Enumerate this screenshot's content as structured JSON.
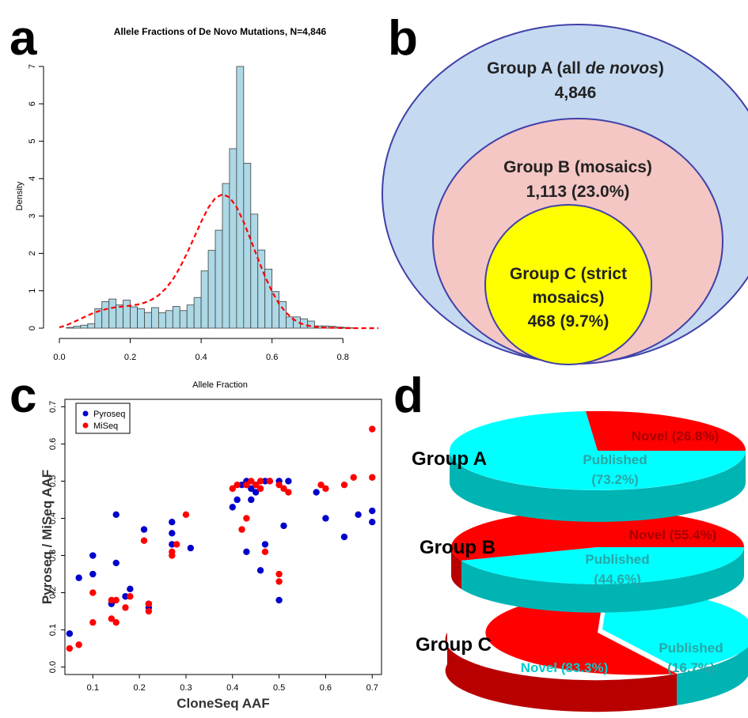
{
  "panels": {
    "a": "a",
    "b": "b",
    "c": "c",
    "d": "d"
  },
  "chart_data": [
    {
      "panel": "a",
      "type": "bar",
      "subtype": "histogram",
      "title": "Allele Fractions of De Novo Mutations, N=4,846",
      "xlabel": "Allele Fraction",
      "ylabel": "Density",
      "xlim": [
        0.0,
        0.9
      ],
      "ylim": [
        0,
        7
      ],
      "xticks": [
        "0.0",
        "0.2",
        "0.4",
        "0.6",
        "0.8"
      ],
      "yticks": [
        "0",
        "1",
        "2",
        "3",
        "4",
        "5",
        "6",
        "7"
      ],
      "bin_width": 0.02,
      "bin_start": 0.02,
      "bins": [
        0.02,
        0.04,
        0.06,
        0.08,
        0.1,
        0.12,
        0.14,
        0.16,
        0.18,
        0.2,
        0.22,
        0.24,
        0.26,
        0.28,
        0.3,
        0.32,
        0.34,
        0.36,
        0.38,
        0.4,
        0.42,
        0.44,
        0.46,
        0.48,
        0.5,
        0.52,
        0.54,
        0.56,
        0.58,
        0.6,
        0.62,
        0.64,
        0.66,
        0.68,
        0.7,
        0.72,
        0.74,
        0.76,
        0.78,
        0.8,
        0.82
      ],
      "values": [
        0.02,
        0.05,
        0.08,
        0.12,
        0.52,
        0.71,
        0.78,
        0.62,
        0.75,
        0.57,
        0.52,
        0.42,
        0.55,
        0.41,
        0.47,
        0.58,
        0.47,
        0.62,
        0.82,
        1.53,
        2.08,
        2.62,
        3.87,
        4.8,
        7.0,
        4.41,
        3.05,
        2.09,
        1.58,
        0.98,
        0.71,
        0.3,
        0.3,
        0.25,
        0.19,
        0.06,
        0.06,
        0.05,
        0.03,
        0.02,
        0.01
      ],
      "fit_curve": {
        "style": "dashed",
        "color": "#ff0000",
        "x": [
          0.0,
          0.02,
          0.04,
          0.06,
          0.08,
          0.1,
          0.12,
          0.14,
          0.16,
          0.18,
          0.2,
          0.22,
          0.24,
          0.26,
          0.28,
          0.3,
          0.32,
          0.34,
          0.36,
          0.38,
          0.4,
          0.42,
          0.44,
          0.46,
          0.48,
          0.5,
          0.52,
          0.54,
          0.56,
          0.58,
          0.6,
          0.62,
          0.64,
          0.66,
          0.68,
          0.7,
          0.72,
          0.74,
          0.76,
          0.78,
          0.8,
          0.82,
          0.84,
          0.86,
          0.88,
          0.9
        ],
        "y": [
          0.02,
          0.08,
          0.16,
          0.25,
          0.34,
          0.42,
          0.48,
          0.53,
          0.56,
          0.58,
          0.6,
          0.63,
          0.68,
          0.76,
          0.88,
          1.06,
          1.3,
          1.62,
          2.0,
          2.42,
          2.84,
          3.22,
          3.48,
          3.58,
          3.5,
          3.24,
          2.84,
          2.36,
          1.86,
          1.39,
          0.98,
          0.65,
          0.41,
          0.24,
          0.13,
          0.07,
          0.04,
          0.02,
          0.01,
          0.01,
          0.0,
          0.0,
          0.0,
          0.0,
          0.0,
          0.0
        ]
      },
      "bar_fill": "#add8e6",
      "bar_stroke": "#404040"
    },
    {
      "panel": "b",
      "type": "diagram",
      "subtype": "nested-circles",
      "groups": [
        {
          "label_pre": "Group A (all ",
          "label_em": "de novos",
          "label_post": ")",
          "value": "4,846",
          "fill": "#c5d9f1",
          "stroke": "#4a4ab0"
        },
        {
          "label": "Group B (mosaics)",
          "value": "1,113 (23.0%)",
          "fill": "#f4c6c4",
          "stroke": "#4a4ab0"
        },
        {
          "label_line1": "Group C (strict",
          "label_line2": "mosaics)",
          "value": "468 (9.7%)",
          "fill": "#ffff00",
          "stroke": "#4a4ab0"
        }
      ]
    },
    {
      "panel": "c",
      "type": "scatter",
      "xlabel": "CloneSeq AAF",
      "ylabel": "Pyroseq / MiSeq AAF",
      "xlim": [
        0.04,
        0.72
      ],
      "ylim": [
        -0.02,
        0.72
      ],
      "xticks": [
        "0.1",
        "0.2",
        "0.3",
        "0.4",
        "0.5",
        "0.6",
        "0.7"
      ],
      "yticks": [
        "0.0",
        "0.1",
        "0.2",
        "0.3",
        "0.4",
        "0.5",
        "0.6",
        "0.7"
      ],
      "legend_position": "top-left",
      "series": [
        {
          "name": "Pyroseq",
          "color": "#0000cc",
          "points": [
            [
              0.05,
              0.09
            ],
            [
              0.07,
              0.24
            ],
            [
              0.1,
              0.3
            ],
            [
              0.1,
              0.25
            ],
            [
              0.14,
              0.17
            ],
            [
              0.15,
              0.41
            ],
            [
              0.15,
              0.28
            ],
            [
              0.17,
              0.19
            ],
            [
              0.18,
              0.21
            ],
            [
              0.21,
              0.37
            ],
            [
              0.22,
              0.17
            ],
            [
              0.22,
              0.16
            ],
            [
              0.27,
              0.39
            ],
            [
              0.27,
              0.36
            ],
            [
              0.27,
              0.33
            ],
            [
              0.31,
              0.32
            ],
            [
              0.4,
              0.43
            ],
            [
              0.41,
              0.45
            ],
            [
              0.42,
              0.49
            ],
            [
              0.43,
              0.5
            ],
            [
              0.43,
              0.31
            ],
            [
              0.44,
              0.45
            ],
            [
              0.44,
              0.48
            ],
            [
              0.45,
              0.49
            ],
            [
              0.45,
              0.47
            ],
            [
              0.46,
              0.26
            ],
            [
              0.47,
              0.33
            ],
            [
              0.47,
              0.5
            ],
            [
              0.48,
              0.5
            ],
            [
              0.5,
              0.5
            ],
            [
              0.5,
              0.18
            ],
            [
              0.51,
              0.38
            ],
            [
              0.52,
              0.5
            ],
            [
              0.58,
              0.47
            ],
            [
              0.6,
              0.4
            ],
            [
              0.64,
              0.35
            ],
            [
              0.67,
              0.41
            ],
            [
              0.7,
              0.39
            ],
            [
              0.7,
              0.42
            ]
          ]
        },
        {
          "name": "MiSeq",
          "color": "#ff0000",
          "points": [
            [
              0.05,
              0.05
            ],
            [
              0.07,
              0.06
            ],
            [
              0.1,
              0.12
            ],
            [
              0.1,
              0.2
            ],
            [
              0.14,
              0.13
            ],
            [
              0.14,
              0.18
            ],
            [
              0.15,
              0.12
            ],
            [
              0.15,
              0.18
            ],
            [
              0.17,
              0.16
            ],
            [
              0.18,
              0.19
            ],
            [
              0.21,
              0.34
            ],
            [
              0.22,
              0.15
            ],
            [
              0.22,
              0.17
            ],
            [
              0.27,
              0.3
            ],
            [
              0.27,
              0.31
            ],
            [
              0.28,
              0.33
            ],
            [
              0.3,
              0.41
            ],
            [
              0.4,
              0.48
            ],
            [
              0.41,
              0.49
            ],
            [
              0.42,
              0.37
            ],
            [
              0.43,
              0.49
            ],
            [
              0.43,
              0.4
            ],
            [
              0.43,
              0.49
            ],
            [
              0.44,
              0.5
            ],
            [
              0.45,
              0.49
            ],
            [
              0.46,
              0.5
            ],
            [
              0.46,
              0.48
            ],
            [
              0.47,
              0.31
            ],
            [
              0.48,
              0.5
            ],
            [
              0.5,
              0.49
            ],
            [
              0.5,
              0.25
            ],
            [
              0.5,
              0.23
            ],
            [
              0.51,
              0.48
            ],
            [
              0.52,
              0.47
            ],
            [
              0.59,
              0.49
            ],
            [
              0.6,
              0.48
            ],
            [
              0.64,
              0.49
            ],
            [
              0.66,
              0.51
            ],
            [
              0.7,
              0.64
            ],
            [
              0.7,
              0.51
            ]
          ]
        }
      ]
    },
    {
      "panel": "d",
      "type": "pie",
      "style": "3d-stacked",
      "charts": [
        {
          "group": "Group A",
          "slices": [
            {
              "label": "Novel",
              "pct": "(26.8%)",
              "value": 26.8,
              "color": "#ff0000"
            },
            {
              "label": "Published",
              "pct": "(73.2%)",
              "value": 73.2,
              "color": "#00ffff"
            }
          ]
        },
        {
          "group": "Group B",
          "slices": [
            {
              "label": "Novel",
              "pct": "(55.4%)",
              "value": 55.4,
              "color": "#ff0000"
            },
            {
              "label": "Published",
              "pct": "(44.6%)",
              "value": 44.6,
              "color": "#00ffff"
            }
          ]
        },
        {
          "group": "Group C",
          "slices": [
            {
              "label": "Novel",
              "pct": "(83.3%)",
              "value": 83.3,
              "color": "#ff0000"
            },
            {
              "label": "Published",
              "pct": "(16.7%)",
              "value": 16.7,
              "color": "#00ffff"
            }
          ]
        }
      ]
    }
  ]
}
